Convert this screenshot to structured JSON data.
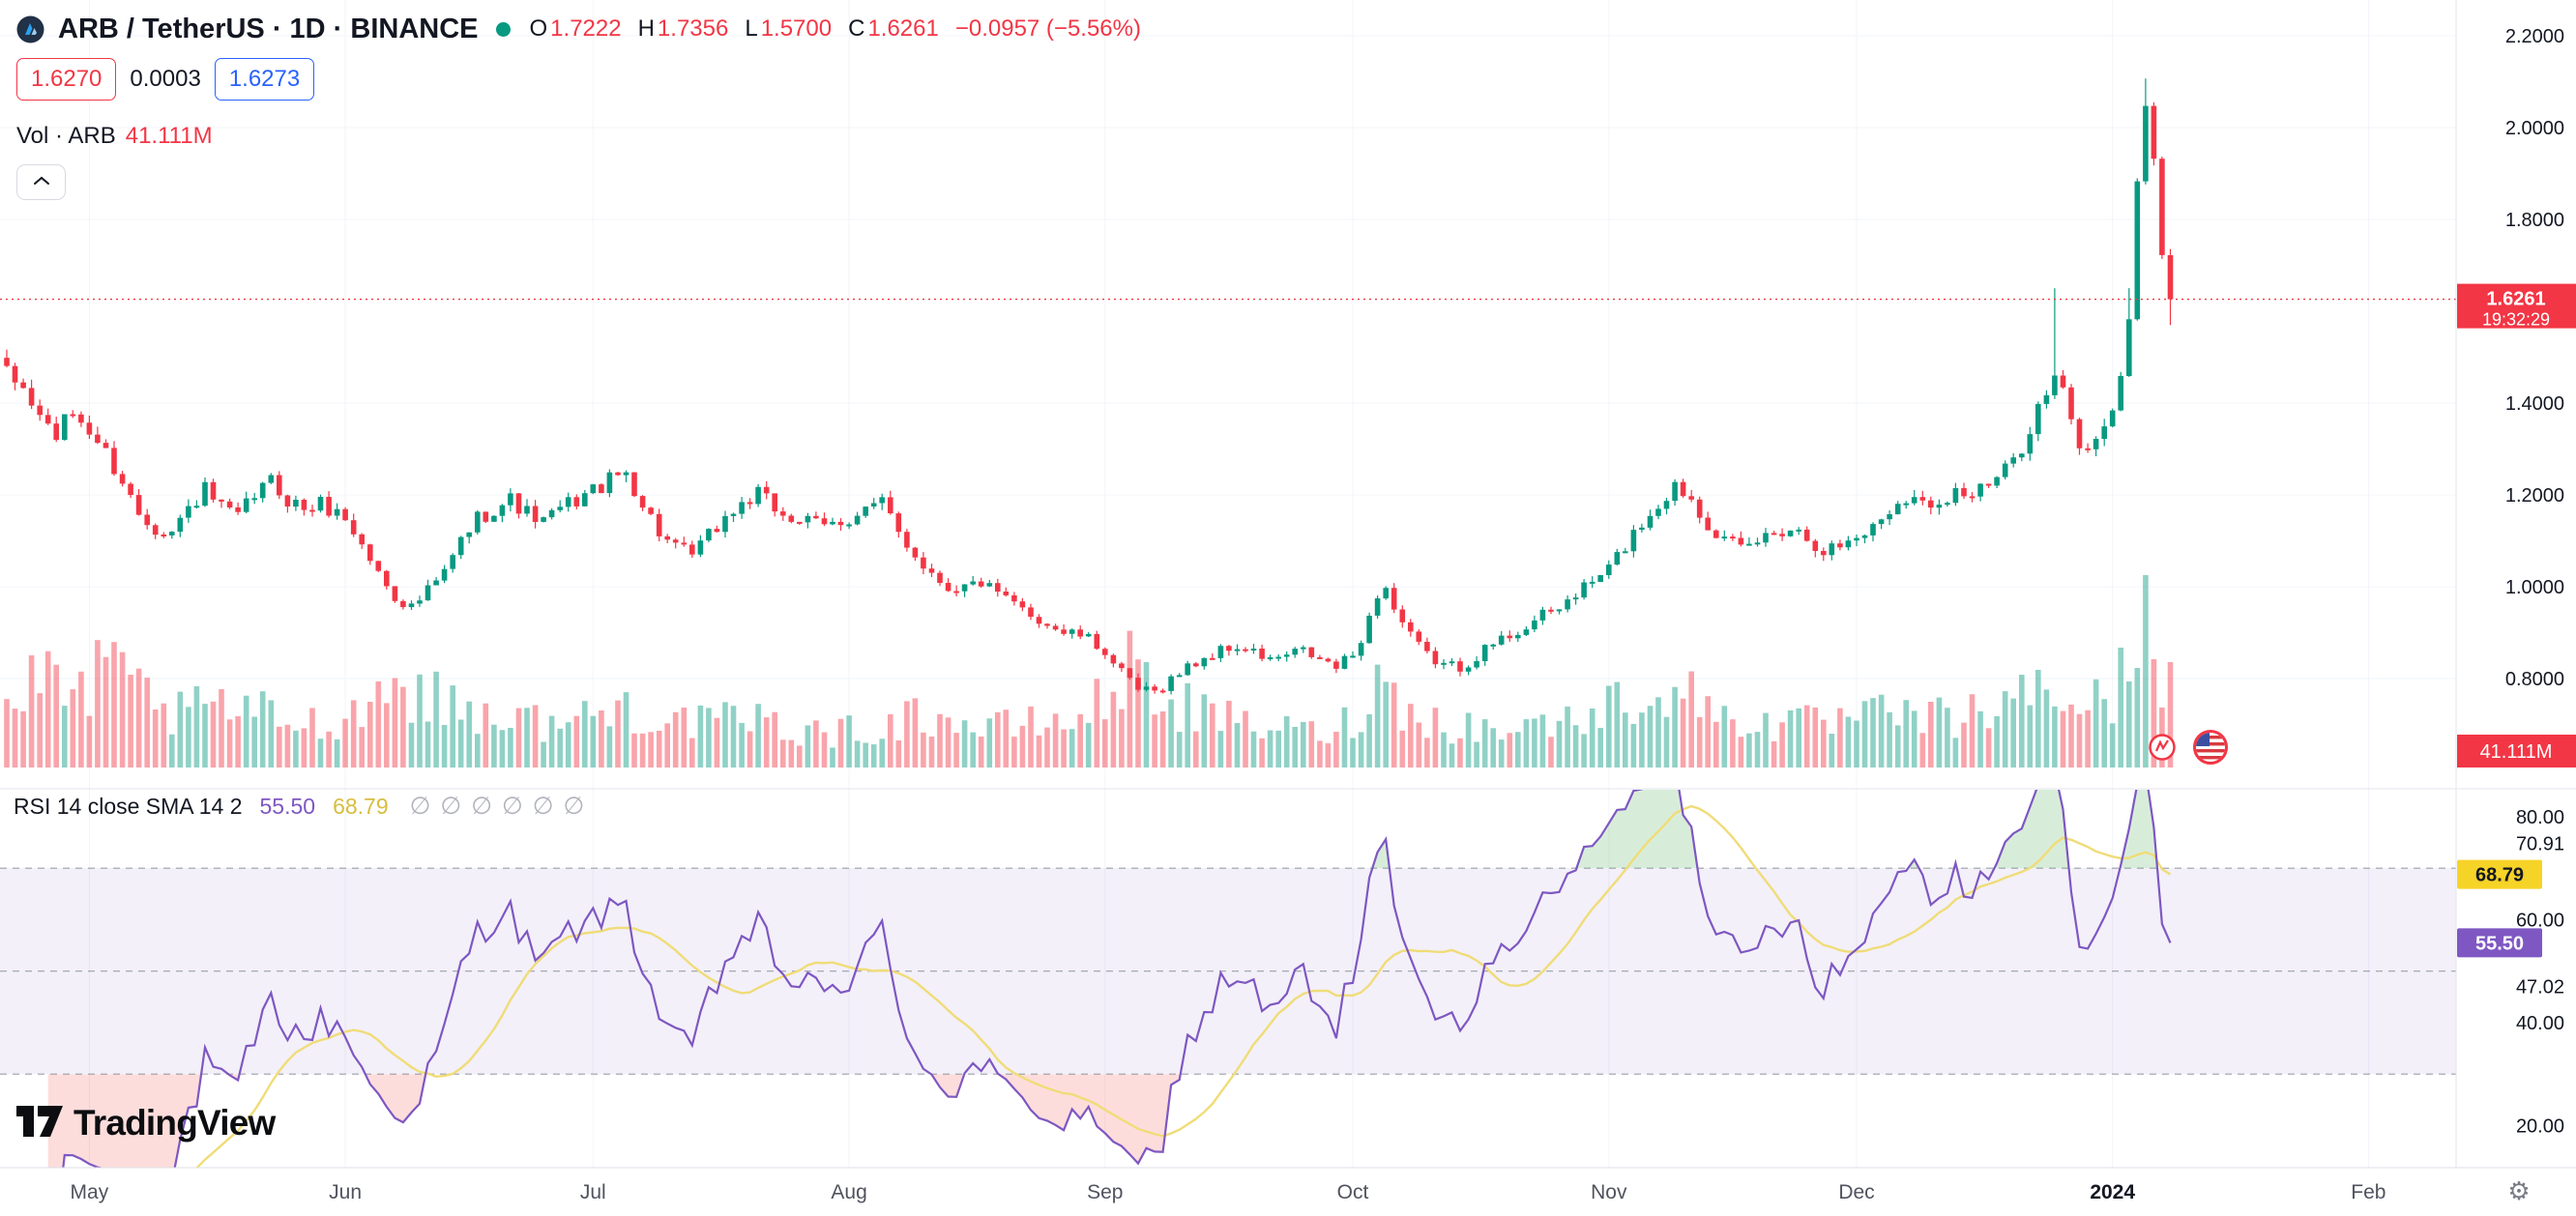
{
  "header": {
    "title": "ARB / TetherUS · 1D · BINANCE",
    "ohlc_pairs": [
      {
        "label": "O",
        "value": "1.7222"
      },
      {
        "label": "H",
        "value": "1.7356"
      },
      {
        "label": "L",
        "value": "1.5700"
      },
      {
        "label": "C",
        "value": "1.6261"
      }
    ],
    "change": "−0.0957 (−5.56%)",
    "bid": "1.6270",
    "spread": "0.0003",
    "ask": "1.6273",
    "volume_label": "Vol · ARB",
    "volume_value": "41.111M"
  },
  "rsi_header": {
    "title": "RSI 14 close SMA 14 2",
    "rsi_value": "55.50",
    "sma_value": "68.79",
    "muted_count": 6
  },
  "footer": {
    "logo_text": "TradingView"
  },
  "icons": {
    "gear": "⚙",
    "muted": "∅"
  },
  "colors": {
    "up": "#089981",
    "down": "#f23645",
    "vol_up": "rgba(8,153,129,0.45)",
    "vol_down": "rgba(242,54,69,0.45)",
    "rsi_line": "#7e57c2",
    "rsi_sma_line": "#f0dc78",
    "rsi_badge": "#7e57c2",
    "sma_badge": "#f6d327",
    "band_fill": "rgba(126,87,194,0.09)",
    "band_line": "#9aa0ab",
    "ob_fill": "rgba(76,175,80,0.22)",
    "os_fill": "rgba(244,67,54,0.18)",
    "last_price": "#f23645",
    "accent_blue": "#2962ff",
    "text": "#131722",
    "muted_text": "#787b86"
  },
  "chart_data": {
    "type": "candlestick",
    "symbol": "ARB / TetherUS",
    "interval": "1D",
    "exchange": "BINANCE",
    "last": {
      "open": 1.7222,
      "high": 1.7356,
      "low": 1.57,
      "close": 1.6261,
      "change": -0.0957,
      "change_pct": -5.56
    },
    "price_axis": {
      "ticks": [
        2.2,
        2.0,
        1.8,
        1.4,
        1.2,
        1.0,
        0.8
      ],
      "last_price": "1.6261",
      "countdown": "19:32:29"
    },
    "volume_axis": {
      "current_label": "41.111M"
    },
    "rsi": {
      "length": 14,
      "source": "close",
      "sma_length": 14,
      "ticks": [
        80,
        70.91,
        60,
        47.02,
        40,
        20
      ],
      "upper_band": 70,
      "middle_band": 50,
      "lower_band": 30,
      "last_rsi": "55.50",
      "last_sma": "68.79"
    },
    "months": [
      {
        "label": "May",
        "day": 10
      },
      {
        "label": "Jun",
        "day": 41
      },
      {
        "label": "Jul",
        "day": 71
      },
      {
        "label": "Aug",
        "day": 102
      },
      {
        "label": "Sep",
        "day": 133
      },
      {
        "label": "Oct",
        "day": 163
      },
      {
        "label": "Nov",
        "day": 194
      },
      {
        "label": "Dec",
        "day": 224
      },
      {
        "label": "2024",
        "day": 255,
        "em": true
      },
      {
        "label": "Feb",
        "day": 286
      }
    ],
    "price_anchors": [
      [
        0,
        1.46
      ],
      [
        2,
        1.43
      ],
      [
        4,
        1.37
      ],
      [
        6,
        1.33
      ],
      [
        8,
        1.38
      ],
      [
        10,
        1.34
      ],
      [
        12,
        1.29
      ],
      [
        14,
        1.23
      ],
      [
        16,
        1.16
      ],
      [
        18,
        1.13
      ],
      [
        20,
        1.12
      ],
      [
        22,
        1.17
      ],
      [
        24,
        1.21
      ],
      [
        26,
        1.17
      ],
      [
        28,
        1.15
      ],
      [
        30,
        1.2
      ],
      [
        32,
        1.23
      ],
      [
        34,
        1.19
      ],
      [
        36,
        1.17
      ],
      [
        38,
        1.18
      ],
      [
        41,
        1.15
      ],
      [
        43,
        1.09
      ],
      [
        45,
        1.03
      ],
      [
        47,
        0.98
      ],
      [
        49,
        0.955
      ],
      [
        51,
        0.99
      ],
      [
        53,
        1.03
      ],
      [
        55,
        1.1
      ],
      [
        57,
        1.15
      ],
      [
        59,
        1.17
      ],
      [
        61,
        1.19
      ],
      [
        63,
        1.16
      ],
      [
        65,
        1.14
      ],
      [
        67,
        1.17
      ],
      [
        69,
        1.19
      ],
      [
        71,
        1.21
      ],
      [
        73,
        1.23
      ],
      [
        75,
        1.25
      ],
      [
        77,
        1.18
      ],
      [
        79,
        1.12
      ],
      [
        81,
        1.08
      ],
      [
        83,
        1.07
      ],
      [
        85,
        1.11
      ],
      [
        87,
        1.15
      ],
      [
        89,
        1.18
      ],
      [
        91,
        1.2
      ],
      [
        93,
        1.17
      ],
      [
        95,
        1.15
      ],
      [
        97,
        1.14
      ],
      [
        99,
        1.13
      ],
      [
        102,
        1.15
      ],
      [
        104,
        1.17
      ],
      [
        106,
        1.18
      ],
      [
        108,
        1.12
      ],
      [
        110,
        1.07
      ],
      [
        112,
        1.03
      ],
      [
        114,
        1.0
      ],
      [
        116,
        1.0
      ],
      [
        118,
        1.01
      ],
      [
        120,
        0.98
      ],
      [
        122,
        0.96
      ],
      [
        124,
        0.94
      ],
      [
        126,
        0.92
      ],
      [
        128,
        0.9
      ],
      [
        130,
        0.895
      ],
      [
        133,
        0.86
      ],
      [
        135,
        0.81
      ],
      [
        137,
        0.775
      ],
      [
        139,
        0.77
      ],
      [
        141,
        0.8
      ],
      [
        143,
        0.825
      ],
      [
        145,
        0.845
      ],
      [
        147,
        0.86
      ],
      [
        149,
        0.87
      ],
      [
        151,
        0.855
      ],
      [
        153,
        0.84
      ],
      [
        155,
        0.85
      ],
      [
        157,
        0.86
      ],
      [
        159,
        0.84
      ],
      [
        161,
        0.825
      ],
      [
        163,
        0.85
      ],
      [
        165,
        0.93
      ],
      [
        166,
        0.985
      ],
      [
        167,
        1.0
      ],
      [
        168,
        0.95
      ],
      [
        170,
        0.89
      ],
      [
        172,
        0.85
      ],
      [
        174,
        0.83
      ],
      [
        176,
        0.825
      ],
      [
        178,
        0.85
      ],
      [
        180,
        0.875
      ],
      [
        182,
        0.895
      ],
      [
        184,
        0.915
      ],
      [
        186,
        0.935
      ],
      [
        188,
        0.955
      ],
      [
        190,
        0.985
      ],
      [
        192,
        1.01
      ],
      [
        194,
        1.04
      ],
      [
        196,
        1.09
      ],
      [
        198,
        1.14
      ],
      [
        200,
        1.18
      ],
      [
        202,
        1.22
      ],
      [
        204,
        1.195
      ],
      [
        206,
        1.14
      ],
      [
        208,
        1.1
      ],
      [
        210,
        1.08
      ],
      [
        212,
        1.1
      ],
      [
        214,
        1.12
      ],
      [
        216,
        1.13
      ],
      [
        218,
        1.11
      ],
      [
        220,
        1.08
      ],
      [
        222,
        1.09
      ],
      [
        224,
        1.11
      ],
      [
        226,
        1.13
      ],
      [
        228,
        1.17
      ],
      [
        230,
        1.2
      ],
      [
        232,
        1.18
      ],
      [
        234,
        1.19
      ],
      [
        236,
        1.21
      ],
      [
        238,
        1.2
      ],
      [
        240,
        1.22
      ],
      [
        242,
        1.25
      ],
      [
        244,
        1.31
      ],
      [
        246,
        1.39
      ],
      [
        248,
        1.45
      ],
      [
        249,
        1.42
      ],
      [
        250,
        1.36
      ],
      [
        251,
        1.31
      ],
      [
        252,
        1.29
      ],
      [
        253,
        1.33
      ],
      [
        254,
        1.36
      ],
      [
        255,
        1.39
      ],
      [
        256,
        1.44
      ],
      [
        257,
        1.6
      ],
      [
        258,
        1.88
      ],
      [
        259,
        2.04
      ],
      [
        260,
        1.95
      ],
      [
        261,
        1.7222
      ],
      [
        262,
        1.6261
      ]
    ],
    "wick_boosts": {
      "248": 0.18,
      "257": 0.06,
      "259": 0.05
    },
    "volume_envelope": [
      [
        0,
        0.35
      ],
      [
        4,
        0.5
      ],
      [
        8,
        0.4
      ],
      [
        12,
        0.55
      ],
      [
        16,
        0.45
      ],
      [
        20,
        0.3
      ],
      [
        26,
        0.35
      ],
      [
        32,
        0.3
      ],
      [
        38,
        0.25
      ],
      [
        43,
        0.35
      ],
      [
        47,
        0.5
      ],
      [
        51,
        0.4
      ],
      [
        55,
        0.35
      ],
      [
        60,
        0.3
      ],
      [
        66,
        0.25
      ],
      [
        71,
        0.3
      ],
      [
        75,
        0.35
      ],
      [
        79,
        0.3
      ],
      [
        85,
        0.25
      ],
      [
        90,
        0.28
      ],
      [
        95,
        0.22
      ],
      [
        100,
        0.2
      ],
      [
        105,
        0.22
      ],
      [
        110,
        0.3
      ],
      [
        114,
        0.28
      ],
      [
        118,
        0.22
      ],
      [
        124,
        0.25
      ],
      [
        130,
        0.28
      ],
      [
        134,
        0.45
      ],
      [
        137,
        0.62
      ],
      [
        140,
        0.4
      ],
      [
        145,
        0.3
      ],
      [
        150,
        0.25
      ],
      [
        155,
        0.22
      ],
      [
        160,
        0.2
      ],
      [
        163,
        0.28
      ],
      [
        166,
        0.5
      ],
      [
        169,
        0.35
      ],
      [
        174,
        0.25
      ],
      [
        180,
        0.22
      ],
      [
        186,
        0.25
      ],
      [
        192,
        0.3
      ],
      [
        196,
        0.4
      ],
      [
        200,
        0.45
      ],
      [
        204,
        0.4
      ],
      [
        208,
        0.3
      ],
      [
        214,
        0.25
      ],
      [
        220,
        0.25
      ],
      [
        226,
        0.3
      ],
      [
        232,
        0.28
      ],
      [
        238,
        0.3
      ],
      [
        243,
        0.35
      ],
      [
        246,
        0.5
      ],
      [
        249,
        0.4
      ],
      [
        252,
        0.35
      ],
      [
        255,
        0.4
      ],
      [
        257,
        0.6
      ],
      [
        258,
        0.85
      ],
      [
        259,
        1.0
      ],
      [
        260,
        0.8
      ],
      [
        261,
        0.6
      ],
      [
        262,
        0.5
      ]
    ]
  }
}
